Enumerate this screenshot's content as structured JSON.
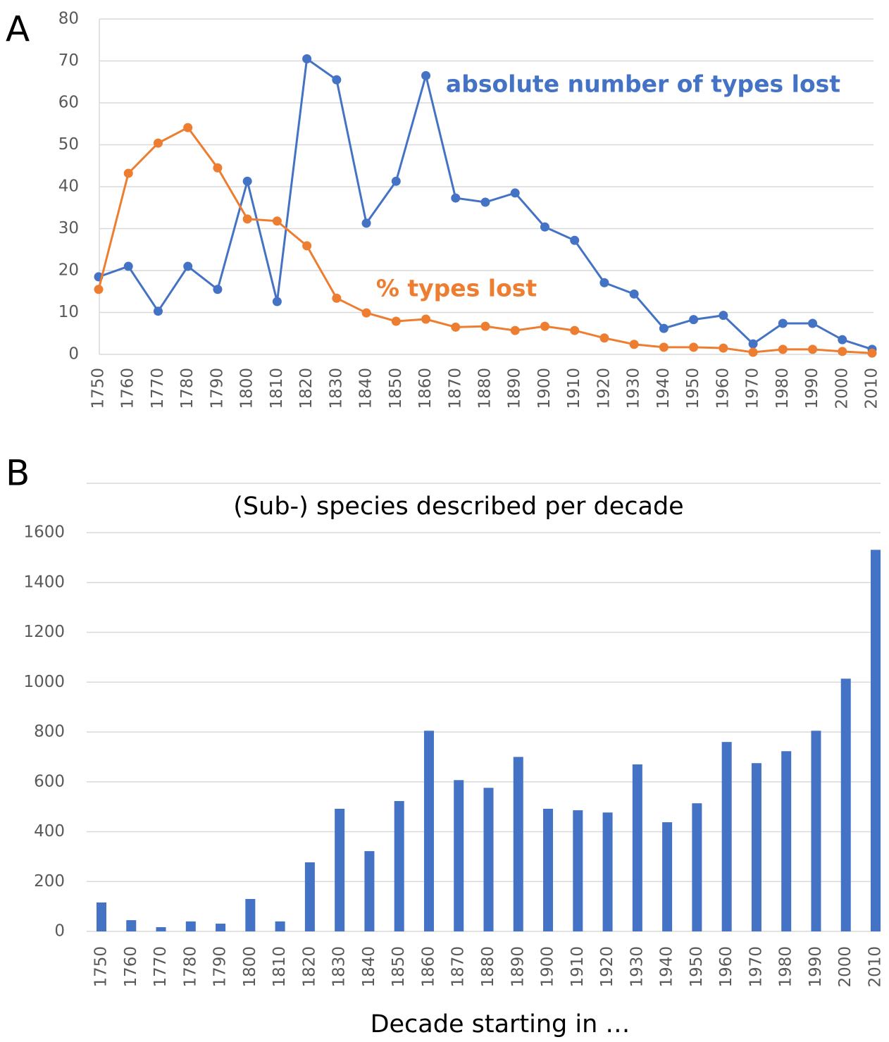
{
  "chart_data": [
    {
      "type": "line",
      "panel": "A",
      "categories": [
        "1750",
        "1760",
        "1770",
        "1780",
        "1790",
        "1800",
        "1810",
        "1820",
        "1830",
        "1840",
        "1850",
        "1860",
        "1870",
        "1880",
        "1890",
        "1900",
        "1910",
        "1920",
        "1930",
        "1940",
        "1950",
        "1960",
        "1970",
        "1980",
        "1990",
        "2000",
        "2010"
      ],
      "series": [
        {
          "name": "absolute number of types lost",
          "color": "#4472c4",
          "values": [
            18.5,
            21,
            10.3,
            21,
            15.5,
            41.3,
            12.6,
            70.5,
            65.5,
            31.3,
            41.3,
            66.5,
            37.3,
            36.3,
            38.5,
            30.4,
            27.2,
            17.1,
            14.4,
            6.2,
            8.3,
            9.3,
            2.5,
            7.4,
            7.4,
            3.5,
            1.2
          ]
        },
        {
          "name": "% types lost",
          "color": "#ed7d31",
          "values": [
            15.5,
            43.2,
            50.4,
            54.1,
            44.5,
            32.3,
            31.8,
            25.9,
            13.4,
            9.9,
            7.9,
            8.4,
            6.5,
            6.7,
            5.7,
            6.7,
            5.7,
            3.9,
            2.4,
            1.7,
            1.7,
            1.5,
            0.5,
            1.2,
            1.2,
            0.7,
            0.3
          ]
        }
      ],
      "ylim": [
        0,
        80
      ],
      "yticks": [
        0,
        10,
        20,
        30,
        40,
        50,
        60,
        70,
        80
      ],
      "grid": true
    },
    {
      "type": "bar",
      "panel": "B",
      "title": "(Sub-) species described per decade",
      "x_label": "Decade starting in …",
      "categories": [
        "1750",
        "1760",
        "1770",
        "1780",
        "1790",
        "1800",
        "1810",
        "1820",
        "1830",
        "1840",
        "1850",
        "1860",
        "1870",
        "1880",
        "1890",
        "1900",
        "1910",
        "1920",
        "1930",
        "1940",
        "1950",
        "1960",
        "1970",
        "1980",
        "1990",
        "2000",
        "2010"
      ],
      "values": [
        116,
        45,
        17,
        40,
        31,
        130,
        40,
        277,
        492,
        322,
        523,
        805,
        607,
        576,
        700,
        492,
        486,
        477,
        670,
        438,
        514,
        760,
        675,
        723,
        805,
        1014,
        1531
      ],
      "color": "#4472c4",
      "ylim": [
        0,
        1600
      ],
      "yticks": [
        0,
        200,
        400,
        600,
        800,
        1000,
        1200,
        1400,
        1600
      ],
      "grid": true
    }
  ]
}
